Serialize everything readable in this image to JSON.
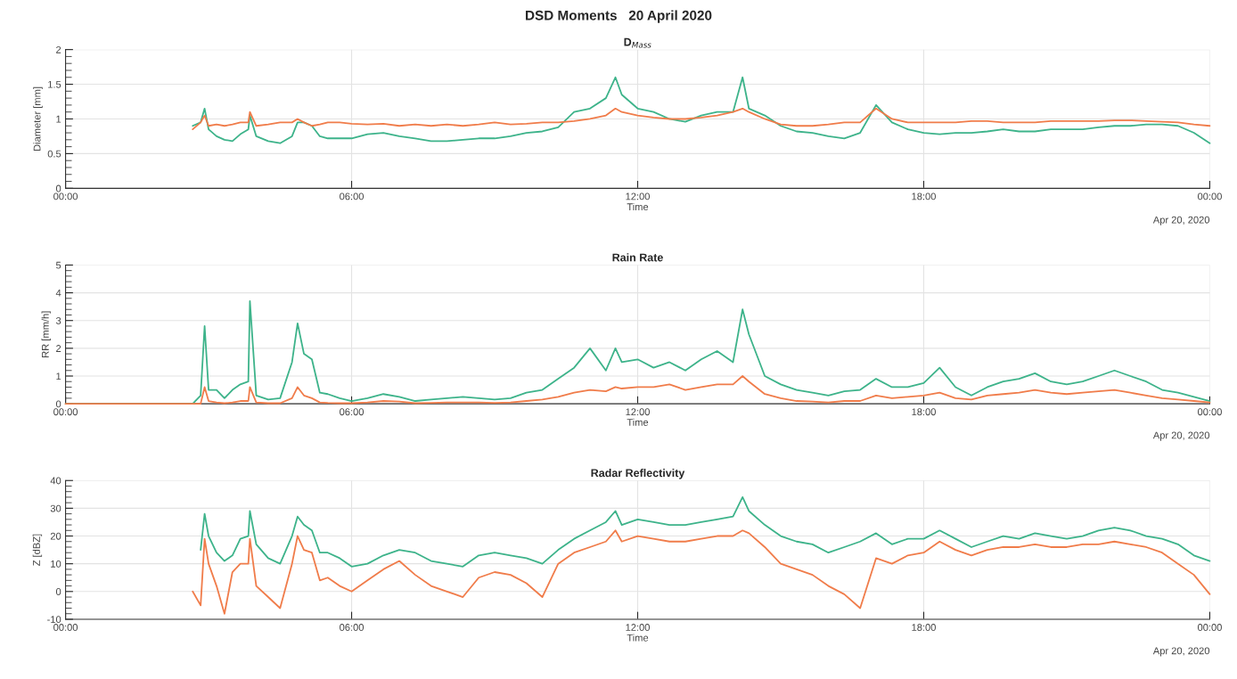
{
  "chart_data": [
    {
      "type": "line",
      "title": "D$_{Mass}$",
      "xlabel": "Time",
      "ylabel": "Diameter [mm]",
      "annotations": [
        "DSD Moments   20 April 2020",
        "Apr 20, 2020"
      ],
      "grid": true,
      "x": [
        "2020-04-20T02:40",
        "2020-04-20T02:50",
        "2020-04-20T02:55",
        "2020-04-20T03:00",
        "2020-04-20T03:10",
        "2020-04-20T03:20",
        "2020-04-20T03:30",
        "2020-04-20T03:40",
        "2020-04-20T03:50",
        "2020-04-20T03:52",
        "2020-04-20T04:00",
        "2020-04-20T04:15",
        "2020-04-20T04:30",
        "2020-04-20T04:45",
        "2020-04-20T04:52",
        "2020-04-20T05:00",
        "2020-04-20T05:10",
        "2020-04-20T05:20",
        "2020-04-20T05:30",
        "2020-04-20T05:45",
        "2020-04-20T06:00",
        "2020-04-20T06:20",
        "2020-04-20T06:40",
        "2020-04-20T07:00",
        "2020-04-20T07:20",
        "2020-04-20T07:40",
        "2020-04-20T08:00",
        "2020-04-20T08:20",
        "2020-04-20T08:40",
        "2020-04-20T09:00",
        "2020-04-20T09:20",
        "2020-04-20T09:40",
        "2020-04-20T10:00",
        "2020-04-20T10:20",
        "2020-04-20T10:40",
        "2020-04-20T11:00",
        "2020-04-20T11:20",
        "2020-04-20T11:32",
        "2020-04-20T11:40",
        "2020-04-20T12:00",
        "2020-04-20T12:20",
        "2020-04-20T12:40",
        "2020-04-20T13:00",
        "2020-04-20T13:20",
        "2020-04-20T13:40",
        "2020-04-20T14:00",
        "2020-04-20T14:12",
        "2020-04-20T14:20",
        "2020-04-20T14:40",
        "2020-04-20T15:00",
        "2020-04-20T15:20",
        "2020-04-20T15:40",
        "2020-04-20T16:00",
        "2020-04-20T16:20",
        "2020-04-20T16:40",
        "2020-04-20T17:00",
        "2020-04-20T17:20",
        "2020-04-20T17:40",
        "2020-04-20T18:00",
        "2020-04-20T18:20",
        "2020-04-20T18:40",
        "2020-04-20T19:00",
        "2020-04-20T19:20",
        "2020-04-20T19:40",
        "2020-04-20T20:00",
        "2020-04-20T20:20",
        "2020-04-20T20:40",
        "2020-04-20T21:00",
        "2020-04-20T21:20",
        "2020-04-20T21:40",
        "2020-04-20T22:00",
        "2020-04-20T22:20",
        "2020-04-20T22:40",
        "2020-04-20T23:00",
        "2020-04-20T23:20",
        "2020-04-20T23:40",
        "2020-04-21T00:00"
      ],
      "xlim": [
        "2020-04-20T00:00",
        "2020-04-21T00:00"
      ],
      "xticks": [
        {
          "value": "2020-04-20T00:00",
          "label": "00:00"
        },
        {
          "value": "2020-04-20T06:00",
          "label": "06:00"
        },
        {
          "value": "2020-04-20T12:00",
          "label": "12:00"
        },
        {
          "value": "2020-04-20T18:00",
          "label": "18:00"
        },
        {
          "value": "2020-04-21T00:00",
          "label": "00:00"
        }
      ],
      "ylim": [
        0,
        2
      ],
      "yticks": [
        0,
        0.5,
        1,
        1.5,
        2
      ],
      "series": [
        {
          "color": "#3db38a",
          "values": [
            0.9,
            0.95,
            1.15,
            0.85,
            0.75,
            0.7,
            0.68,
            0.78,
            0.85,
            1.05,
            0.75,
            0.68,
            0.65,
            0.75,
            0.95,
            0.95,
            0.9,
            0.75,
            0.72,
            0.72,
            0.72,
            0.78,
            0.8,
            0.75,
            0.72,
            0.68,
            0.68,
            0.7,
            0.72,
            0.72,
            0.75,
            0.8,
            0.82,
            0.88,
            1.1,
            1.15,
            1.3,
            1.6,
            1.35,
            1.15,
            1.1,
            1.0,
            0.96,
            1.05,
            1.1,
            1.1,
            1.6,
            1.15,
            1.05,
            0.9,
            0.82,
            0.8,
            0.75,
            0.72,
            0.8,
            1.2,
            0.95,
            0.85,
            0.8,
            0.78,
            0.8,
            0.8,
            0.82,
            0.85,
            0.82,
            0.82,
            0.85,
            0.85,
            0.85,
            0.88,
            0.9,
            0.9,
            0.92,
            0.92,
            0.9,
            0.8,
            0.65
          ]
        },
        {
          "color": "#f07c4a",
          "values": [
            0.85,
            0.95,
            1.05,
            0.9,
            0.92,
            0.9,
            0.92,
            0.95,
            0.95,
            1.1,
            0.9,
            0.92,
            0.95,
            0.95,
            1.0,
            0.95,
            0.9,
            0.92,
            0.95,
            0.95,
            0.93,
            0.92,
            0.93,
            0.9,
            0.92,
            0.9,
            0.92,
            0.9,
            0.92,
            0.95,
            0.92,
            0.93,
            0.95,
            0.95,
            0.97,
            1.0,
            1.05,
            1.15,
            1.1,
            1.05,
            1.02,
            1.0,
            1.0,
            1.02,
            1.05,
            1.1,
            1.15,
            1.1,
            1.0,
            0.92,
            0.9,
            0.9,
            0.92,
            0.95,
            0.95,
            1.15,
            1.0,
            0.95,
            0.95,
            0.95,
            0.95,
            0.97,
            0.97,
            0.95,
            0.95,
            0.95,
            0.97,
            0.97,
            0.97,
            0.97,
            0.98,
            0.98,
            0.97,
            0.96,
            0.95,
            0.92,
            0.9
          ]
        }
      ]
    },
    {
      "type": "line",
      "title": "Rain Rate",
      "xlabel": "Time",
      "ylabel": "RR [mm/h]",
      "annotations": [
        "Apr 20, 2020"
      ],
      "grid": true,
      "x": [
        "2020-04-20T00:00",
        "2020-04-20T02:30",
        "2020-04-20T02:40",
        "2020-04-20T02:50",
        "2020-04-20T02:55",
        "2020-04-20T03:00",
        "2020-04-20T03:10",
        "2020-04-20T03:20",
        "2020-04-20T03:30",
        "2020-04-20T03:40",
        "2020-04-20T03:50",
        "2020-04-20T03:52",
        "2020-04-20T04:00",
        "2020-04-20T04:15",
        "2020-04-20T04:30",
        "2020-04-20T04:45",
        "2020-04-20T04:52",
        "2020-04-20T05:00",
        "2020-04-20T05:10",
        "2020-04-20T05:20",
        "2020-04-20T05:30",
        "2020-04-20T05:45",
        "2020-04-20T06:00",
        "2020-04-20T06:20",
        "2020-04-20T06:40",
        "2020-04-20T07:00",
        "2020-04-20T07:20",
        "2020-04-20T07:40",
        "2020-04-20T08:00",
        "2020-04-20T08:20",
        "2020-04-20T08:40",
        "2020-04-20T09:00",
        "2020-04-20T09:20",
        "2020-04-20T09:40",
        "2020-04-20T10:00",
        "2020-04-20T10:20",
        "2020-04-20T10:40",
        "2020-04-20T11:00",
        "2020-04-20T11:20",
        "2020-04-20T11:32",
        "2020-04-20T11:40",
        "2020-04-20T12:00",
        "2020-04-20T12:20",
        "2020-04-20T12:40",
        "2020-04-20T13:00",
        "2020-04-20T13:20",
        "2020-04-20T13:40",
        "2020-04-20T14:00",
        "2020-04-20T14:12",
        "2020-04-20T14:20",
        "2020-04-20T14:40",
        "2020-04-20T15:00",
        "2020-04-20T15:20",
        "2020-04-20T15:40",
        "2020-04-20T16:00",
        "2020-04-20T16:20",
        "2020-04-20T16:40",
        "2020-04-20T17:00",
        "2020-04-20T17:20",
        "2020-04-20T17:40",
        "2020-04-20T18:00",
        "2020-04-20T18:20",
        "2020-04-20T18:40",
        "2020-04-20T19:00",
        "2020-04-20T19:20",
        "2020-04-20T19:40",
        "2020-04-20T20:00",
        "2020-04-20T20:20",
        "2020-04-20T20:40",
        "2020-04-20T21:00",
        "2020-04-20T21:20",
        "2020-04-20T21:40",
        "2020-04-20T22:00",
        "2020-04-20T22:20",
        "2020-04-20T22:40",
        "2020-04-20T23:00",
        "2020-04-20T23:20",
        "2020-04-20T23:40",
        "2020-04-21T00:00"
      ],
      "xlim": [
        "2020-04-20T00:00",
        "2020-04-21T00:00"
      ],
      "xticks": [
        {
          "value": "2020-04-20T00:00",
          "label": "00:00"
        },
        {
          "value": "2020-04-20T06:00",
          "label": "06:00"
        },
        {
          "value": "2020-04-20T12:00",
          "label": "12:00"
        },
        {
          "value": "2020-04-20T18:00",
          "label": "18:00"
        },
        {
          "value": "2020-04-21T00:00",
          "label": "00:00"
        }
      ],
      "ylim": [
        0,
        5
      ],
      "yticks": [
        0,
        1,
        2,
        3,
        4,
        5
      ],
      "series": [
        {
          "color": "#3db38a",
          "values": [
            0,
            0,
            0.0,
            0.3,
            2.8,
            0.5,
            0.5,
            0.2,
            0.5,
            0.7,
            0.8,
            3.7,
            0.3,
            0.15,
            0.2,
            1.5,
            2.9,
            1.8,
            1.6,
            0.4,
            0.35,
            0.2,
            0.1,
            0.2,
            0.35,
            0.25,
            0.1,
            0.15,
            0.2,
            0.25,
            0.2,
            0.15,
            0.2,
            0.4,
            0.5,
            0.9,
            1.3,
            2.0,
            1.2,
            2.0,
            1.5,
            1.6,
            1.3,
            1.5,
            1.2,
            1.6,
            1.9,
            1.5,
            3.4,
            2.5,
            1.0,
            0.7,
            0.5,
            0.4,
            0.3,
            0.45,
            0.5,
            0.9,
            0.6,
            0.6,
            0.75,
            1.3,
            0.6,
            0.3,
            0.6,
            0.8,
            0.9,
            1.1,
            0.8,
            0.7,
            0.8,
            1.0,
            1.2,
            1.0,
            0.8,
            0.5,
            0.4,
            0.25,
            0.1
          ]
        },
        {
          "color": "#f07c4a",
          "values": [
            0,
            0,
            0,
            0,
            0.6,
            0.1,
            0.05,
            0.02,
            0.05,
            0.1,
            0.1,
            0.6,
            0.05,
            0.02,
            0.02,
            0.2,
            0.6,
            0.3,
            0.2,
            0.05,
            0.03,
            0.02,
            0.02,
            0.05,
            0.1,
            0.08,
            0.02,
            0.03,
            0.05,
            0.05,
            0.05,
            0.03,
            0.05,
            0.1,
            0.15,
            0.25,
            0.4,
            0.5,
            0.45,
            0.6,
            0.55,
            0.6,
            0.6,
            0.7,
            0.5,
            0.6,
            0.7,
            0.7,
            1.0,
            0.8,
            0.35,
            0.2,
            0.1,
            0.08,
            0.05,
            0.1,
            0.1,
            0.3,
            0.2,
            0.25,
            0.3,
            0.4,
            0.2,
            0.15,
            0.3,
            0.35,
            0.4,
            0.5,
            0.4,
            0.35,
            0.4,
            0.45,
            0.5,
            0.4,
            0.3,
            0.2,
            0.15,
            0.1,
            0.05
          ]
        }
      ]
    },
    {
      "type": "line",
      "title": "Radar Reflectivity",
      "xlabel": "Time",
      "ylabel": "Z [dBZ]",
      "annotations": [
        "Apr 20, 2020"
      ],
      "grid": true,
      "x": [
        "2020-04-20T02:40",
        "2020-04-20T02:50",
        "2020-04-20T02:55",
        "2020-04-20T03:00",
        "2020-04-20T03:10",
        "2020-04-20T03:20",
        "2020-04-20T03:30",
        "2020-04-20T03:40",
        "2020-04-20T03:50",
        "2020-04-20T03:52",
        "2020-04-20T04:00",
        "2020-04-20T04:15",
        "2020-04-20T04:30",
        "2020-04-20T04:45",
        "2020-04-20T04:52",
        "2020-04-20T05:00",
        "2020-04-20T05:10",
        "2020-04-20T05:20",
        "2020-04-20T05:30",
        "2020-04-20T05:45",
        "2020-04-20T06:00",
        "2020-04-20T06:20",
        "2020-04-20T06:40",
        "2020-04-20T07:00",
        "2020-04-20T07:20",
        "2020-04-20T07:40",
        "2020-04-20T08:00",
        "2020-04-20T08:20",
        "2020-04-20T08:40",
        "2020-04-20T09:00",
        "2020-04-20T09:20",
        "2020-04-20T09:40",
        "2020-04-20T10:00",
        "2020-04-20T10:20",
        "2020-04-20T10:40",
        "2020-04-20T11:00",
        "2020-04-20T11:20",
        "2020-04-20T11:32",
        "2020-04-20T11:40",
        "2020-04-20T12:00",
        "2020-04-20T12:20",
        "2020-04-20T12:40",
        "2020-04-20T13:00",
        "2020-04-20T13:20",
        "2020-04-20T13:40",
        "2020-04-20T14:00",
        "2020-04-20T14:12",
        "2020-04-20T14:20",
        "2020-04-20T14:40",
        "2020-04-20T15:00",
        "2020-04-20T15:20",
        "2020-04-20T15:40",
        "2020-04-20T16:00",
        "2020-04-20T16:20",
        "2020-04-20T16:40",
        "2020-04-20T17:00",
        "2020-04-20T17:20",
        "2020-04-20T17:40",
        "2020-04-20T18:00",
        "2020-04-20T18:20",
        "2020-04-20T18:40",
        "2020-04-20T19:00",
        "2020-04-20T19:20",
        "2020-04-20T19:40",
        "2020-04-20T20:00",
        "2020-04-20T20:20",
        "2020-04-20T20:40",
        "2020-04-20T21:00",
        "2020-04-20T21:20",
        "2020-04-20T21:40",
        "2020-04-20T22:00",
        "2020-04-20T22:20",
        "2020-04-20T22:40",
        "2020-04-20T23:00",
        "2020-04-20T23:20",
        "2020-04-20T23:40",
        "2020-04-21T00:00"
      ],
      "xlim": [
        "2020-04-20T00:00",
        "2020-04-21T00:00"
      ],
      "xticks": [
        {
          "value": "2020-04-20T00:00",
          "label": "00:00"
        },
        {
          "value": "2020-04-20T06:00",
          "label": "06:00"
        },
        {
          "value": "2020-04-20T12:00",
          "label": "12:00"
        },
        {
          "value": "2020-04-20T18:00",
          "label": "18:00"
        },
        {
          "value": "2020-04-21T00:00",
          "label": "00:00"
        }
      ],
      "ylim": [
        -10,
        40
      ],
      "yticks": [
        -10,
        0,
        10,
        20,
        30,
        40
      ],
      "series": [
        {
          "color": "#3db38a",
          "values": [
            null,
            15,
            28,
            20,
            14,
            11,
            13,
            19,
            20,
            29,
            17,
            12,
            10,
            20,
            27,
            24,
            22,
            14,
            14,
            12,
            9,
            10,
            13,
            15,
            14,
            11,
            10,
            9,
            13,
            14,
            13,
            12,
            10,
            15,
            19,
            22,
            25,
            29,
            24,
            26,
            25,
            24,
            24,
            25,
            26,
            27,
            34,
            29,
            24,
            20,
            18,
            17,
            14,
            16,
            18,
            21,
            17,
            19,
            19,
            22,
            19,
            16,
            18,
            20,
            19,
            21,
            20,
            19,
            20,
            22,
            23,
            22,
            20,
            19,
            17,
            13,
            11
          ]
        },
        {
          "color": "#f07c4a",
          "values": [
            0,
            -5,
            19,
            10,
            2,
            -8,
            7,
            10,
            10,
            19,
            2,
            -2,
            -6,
            10,
            20,
            15,
            14,
            4,
            5,
            2,
            0,
            4,
            8,
            11,
            6,
            2,
            0,
            -2,
            5,
            7,
            6,
            3,
            -2,
            10,
            14,
            16,
            18,
            22,
            18,
            20,
            19,
            18,
            18,
            19,
            20,
            20,
            22,
            21,
            16,
            10,
            8,
            6,
            2,
            -1,
            -6,
            12,
            10,
            13,
            14,
            18,
            15,
            13,
            15,
            16,
            16,
            17,
            16,
            16,
            17,
            17,
            18,
            17,
            16,
            14,
            10,
            6,
            -1
          ]
        }
      ]
    }
  ]
}
